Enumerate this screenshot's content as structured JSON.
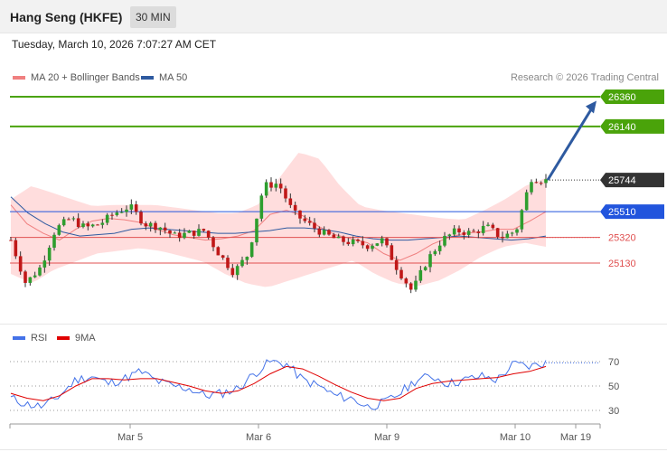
{
  "header": {
    "title": "Hang Seng (HKFE)",
    "timeframe": "30 MIN"
  },
  "timestamp": "Tuesday, March 10, 2026 7:07:27 AM CET",
  "legend_main": [
    {
      "label": "MA 20 + Bollinger Bands",
      "color": "#f08080"
    },
    {
      "label": "MA 50",
      "color": "#2e5aa0"
    }
  ],
  "credit": "Research © 2026 Trading Central",
  "legend_rsi": [
    {
      "label": "RSI",
      "color": "#4472e8"
    },
    {
      "label": "9MA",
      "color": "#e00000"
    }
  ],
  "colors": {
    "up": "#2e9e2e",
    "down": "#c01818",
    "resistance": "#4aa30a",
    "pivot": "#2255dd",
    "support": "#e05050",
    "last": "#333333",
    "arrow": "#2e5aa0",
    "band": "#ffd9d9"
  },
  "chart_data": [
    {
      "type": "candlestick",
      "title": "Hang Seng (HKFE)",
      "ylim": [
        24950,
        26500
      ],
      "levels": [
        {
          "value": 26360,
          "label": "26360",
          "kind": "resistance"
        },
        {
          "value": 26140,
          "label": "26140",
          "kind": "resistance"
        },
        {
          "value": 25744,
          "label": "25744",
          "kind": "last"
        },
        {
          "value": 25510,
          "label": "25510",
          "kind": "pivot"
        },
        {
          "value": 25320,
          "label": "25320",
          "kind": "support"
        },
        {
          "value": 25130,
          "label": "25130",
          "kind": "support"
        }
      ],
      "arrow": {
        "from": 25744,
        "to": 26330
      },
      "sessions": [
        "Mar 5",
        "Mar 6",
        "Mar 9",
        "Mar 10",
        "Mar 19"
      ],
      "close_path": [
        25300,
        24980,
        25100,
        25380,
        25460,
        25390,
        25420,
        25500,
        25550,
        25420,
        25400,
        25330,
        25350,
        25370,
        25200,
        25060,
        25200,
        25700,
        25720,
        25500,
        25420,
        25350,
        25300,
        25280,
        25260,
        25300,
        25090,
        24920,
        25150,
        25300,
        25370,
        25350,
        25400,
        25320,
        25370,
        25760,
        25740
      ],
      "series": [
        {
          "name": "MA 20",
          "values": [
            25560,
            25420,
            25350,
            25300,
            25380,
            25440,
            25460,
            25450,
            25430,
            25380,
            25340,
            25320,
            25300,
            25310,
            25330,
            25370,
            25490,
            25520,
            25480,
            25400,
            25340,
            25310,
            25280,
            25200,
            25150,
            25200,
            25270,
            25320,
            25350,
            25360,
            25380,
            25380,
            25440,
            25510
          ]
        },
        {
          "name": "MA 50",
          "values": [
            25620,
            25500,
            25420,
            25360,
            25330,
            25340,
            25350,
            25380,
            25390,
            25380,
            25370,
            25360,
            25350,
            25350,
            25360,
            25370,
            25390,
            25390,
            25380,
            25360,
            25330,
            25310,
            25300,
            25300,
            25310,
            25320,
            25330,
            25320,
            25310,
            25300,
            25310,
            25330
          ]
        },
        {
          "name": "Bollinger Upper",
          "values": [
            25600,
            25700,
            25650,
            25600,
            25550,
            25560,
            25560,
            25560,
            25540,
            25520,
            25500,
            25500,
            25560,
            25750,
            25950,
            25900,
            25700,
            25550,
            25520,
            25500,
            25480,
            25460,
            25450,
            25520,
            25600,
            25700,
            25760
          ]
        },
        {
          "name": "Bollinger Lower",
          "values": [
            25050,
            24980,
            25080,
            25140,
            25200,
            25220,
            25240,
            25220,
            25180,
            25140,
            25050,
            24980,
            24950,
            25000,
            25050,
            25100,
            25150,
            25050,
            24980,
            24960,
            25000,
            25080,
            25180,
            25250,
            25280,
            25250
          ]
        }
      ]
    },
    {
      "type": "line",
      "title": "RSI",
      "yticks": [
        70,
        50,
        30
      ],
      "ylim": [
        20,
        80
      ],
      "xticks": [
        "Mar 5",
        "Mar 6",
        "Mar 9",
        "Mar 10",
        "Mar 19"
      ],
      "series": [
        {
          "name": "RSI",
          "values": [
            40,
            35,
            33,
            42,
            55,
            58,
            52,
            56,
            62,
            54,
            50,
            48,
            42,
            44,
            48,
            60,
            70,
            68,
            55,
            50,
            42,
            40,
            33,
            36,
            44,
            55,
            58,
            52,
            55,
            58,
            55,
            68,
            66,
            69
          ]
        },
        {
          "name": "9MA",
          "values": [
            44,
            40,
            38,
            42,
            50,
            56,
            56,
            55,
            56,
            56,
            53,
            50,
            46,
            44,
            46,
            52,
            60,
            66,
            64,
            58,
            51,
            45,
            40,
            38,
            40,
            48,
            52,
            54,
            55,
            56,
            57,
            60,
            62,
            66
          ]
        }
      ]
    }
  ]
}
